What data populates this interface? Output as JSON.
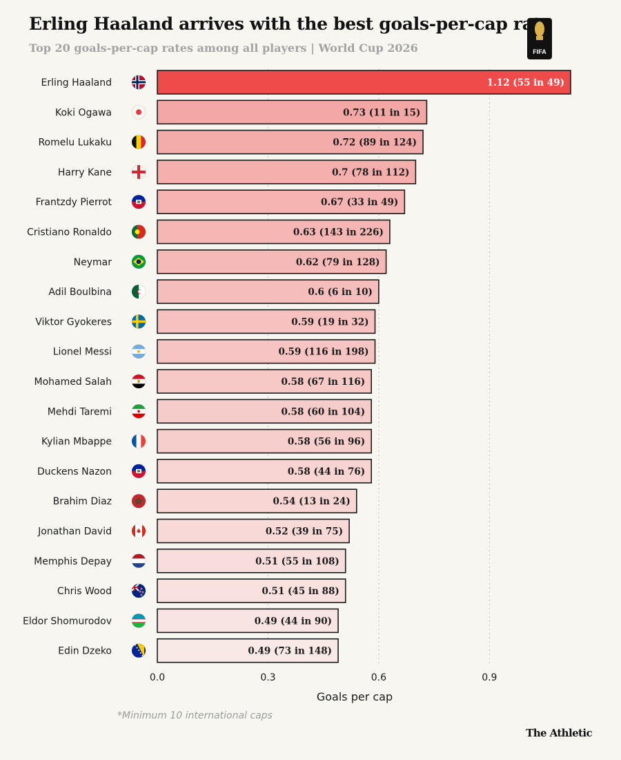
{
  "header": {
    "title": "Erling Haaland arrives with the best goals-per-cap rate",
    "subtitle": "Top 20 goals-per-cap rates among all players | World Cup 2026"
  },
  "logo": {
    "text": "FIFA",
    "icon": "world-cup-2026-logo"
  },
  "footnote": "*Minimum 10 international caps",
  "brand": "The Athletic",
  "colors": {
    "background": "#f7f6f1",
    "highlight": "#f04b4b",
    "bar_darkest": "#f4a8a6",
    "bar_lightest": "#f8e8e6",
    "bar_border": "#1a1a1a"
  },
  "chart_data": {
    "type": "bar",
    "orientation": "horizontal",
    "xlabel": "Goals per cap",
    "xlim": [
      0,
      1.12
    ],
    "xticks": [
      0.0,
      0.3,
      0.6,
      0.9
    ],
    "xtick_labels": [
      "0.0",
      "0.3",
      "0.6",
      "0.9"
    ],
    "grid": "vertical dotted",
    "categories": [
      "Erling Haaland",
      "Koki Ogawa",
      "Romelu Lukaku",
      "Harry Kane",
      "Frantzdy Pierrot",
      "Cristiano Ronaldo",
      "Neymar",
      "Adil Boulbina",
      "Viktor Gyokeres",
      "Lionel Messi",
      "Mohamed Salah",
      "Mehdi Taremi",
      "Kylian Mbappe",
      "Duckens Nazon",
      "Brahim Diaz",
      "Jonathan David",
      "Memphis Depay",
      "Chris Wood",
      "Eldor Shomurodov",
      "Edin Dzeko"
    ],
    "flags": [
      "norway-flag-icon",
      "japan-flag-icon",
      "belgium-flag-icon",
      "england-flag-icon",
      "haiti-flag-icon",
      "portugal-flag-icon",
      "brazil-flag-icon",
      "algeria-flag-icon",
      "sweden-flag-icon",
      "argentina-flag-icon",
      "egypt-flag-icon",
      "iran-flag-icon",
      "france-flag-icon",
      "haiti-flag-icon",
      "morocco-flag-icon",
      "canada-flag-icon",
      "netherlands-flag-icon",
      "new-zealand-flag-icon",
      "uzbekistan-flag-icon",
      "bosnia-flag-icon"
    ],
    "values": [
      1.12,
      0.73,
      0.72,
      0.7,
      0.67,
      0.63,
      0.62,
      0.6,
      0.59,
      0.59,
      0.58,
      0.58,
      0.58,
      0.58,
      0.54,
      0.52,
      0.51,
      0.51,
      0.49,
      0.49
    ],
    "labels": [
      "1.12 (55 in 49)",
      "0.73 (11 in 15)",
      "0.72 (89 in 124)",
      "0.7 (78 in 112)",
      "0.67 (33 in 49)",
      "0.63 (143 in 226)",
      "0.62 (79 in 128)",
      "0.6 (6 in 10)",
      "0.59 (19 in 32)",
      "0.59 (116 in 198)",
      "0.58 (67 in 116)",
      "0.58 (60 in 104)",
      "0.58 (56 in 96)",
      "0.58 (44 in 76)",
      "0.54 (13 in 24)",
      "0.52 (39 in 75)",
      "0.51 (55 in 108)",
      "0.51 (45 in 88)",
      "0.49 (44 in 90)",
      "0.49 (73 in 148)"
    ],
    "highlight_index": 0
  }
}
